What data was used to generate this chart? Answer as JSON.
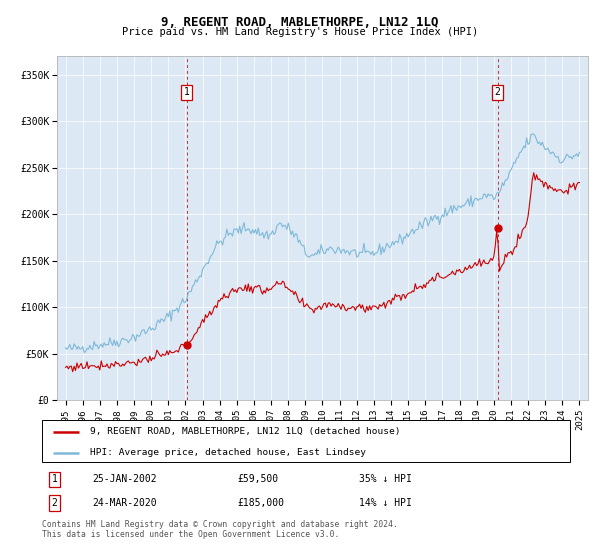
{
  "title": "9, REGENT ROAD, MABLETHORPE, LN12 1LQ",
  "subtitle": "Price paid vs. HM Land Registry's House Price Index (HPI)",
  "legend_line1": "9, REGENT ROAD, MABLETHORPE, LN12 1LQ (detached house)",
  "legend_line2": "HPI: Average price, detached house, East Lindsey",
  "annotation1_date": "25-JAN-2002",
  "annotation1_price": "£59,500",
  "annotation1_hpi": "35% ↓ HPI",
  "annotation2_date": "24-MAR-2020",
  "annotation2_price": "£185,000",
  "annotation2_hpi": "14% ↓ HPI",
  "footnote": "Contains HM Land Registry data © Crown copyright and database right 2024.\nThis data is licensed under the Open Government Licence v3.0.",
  "plot_bg_color": "#dce9f5",
  "hpi_color": "#7fb8d8",
  "price_color": "#cc0000",
  "marker1_x": 2002.07,
  "marker1_y": 59500,
  "marker2_x": 2020.23,
  "marker2_y": 185000,
  "ylim": [
    0,
    370000
  ],
  "xlim": [
    1994.5,
    2025.5
  ],
  "yticks": [
    0,
    50000,
    100000,
    150000,
    200000,
    250000,
    300000,
    350000
  ],
  "ytick_labels": [
    "£0",
    "£50K",
    "£100K",
    "£150K",
    "£200K",
    "£250K",
    "£300K",
    "£350K"
  ],
  "xticks": [
    1995,
    1996,
    1997,
    1998,
    1999,
    2000,
    2001,
    2002,
    2003,
    2004,
    2005,
    2006,
    2007,
    2008,
    2009,
    2010,
    2011,
    2012,
    2013,
    2014,
    2015,
    2016,
    2017,
    2018,
    2019,
    2020,
    2021,
    2022,
    2023,
    2024,
    2025
  ],
  "hpi_anchors": [
    [
      1995.0,
      55000
    ],
    [
      1996.0,
      57000
    ],
    [
      1997.0,
      60000
    ],
    [
      1998.0,
      63000
    ],
    [
      1999.0,
      68000
    ],
    [
      2000.0,
      77000
    ],
    [
      2001.0,
      90000
    ],
    [
      2002.0,
      108000
    ],
    [
      2003.0,
      140000
    ],
    [
      2003.6,
      160000
    ],
    [
      2004.0,
      170000
    ],
    [
      2004.5,
      178000
    ],
    [
      2005.0,
      182000
    ],
    [
      2005.5,
      185000
    ],
    [
      2006.0,
      183000
    ],
    [
      2006.5,
      178000
    ],
    [
      2007.0,
      178000
    ],
    [
      2007.5,
      190000
    ],
    [
      2008.0,
      185000
    ],
    [
      2008.5,
      175000
    ],
    [
      2009.0,
      158000
    ],
    [
      2009.5,
      155000
    ],
    [
      2010.0,
      160000
    ],
    [
      2010.5,
      163000
    ],
    [
      2011.0,
      162000
    ],
    [
      2011.5,
      160000
    ],
    [
      2012.0,
      158000
    ],
    [
      2012.5,
      157000
    ],
    [
      2013.0,
      158000
    ],
    [
      2013.5,
      163000
    ],
    [
      2014.0,
      168000
    ],
    [
      2014.5,
      172000
    ],
    [
      2015.0,
      178000
    ],
    [
      2015.5,
      185000
    ],
    [
      2016.0,
      190000
    ],
    [
      2016.5,
      196000
    ],
    [
      2017.0,
      200000
    ],
    [
      2017.5,
      205000
    ],
    [
      2018.0,
      208000
    ],
    [
      2018.5,
      212000
    ],
    [
      2019.0,
      216000
    ],
    [
      2019.5,
      220000
    ],
    [
      2020.0,
      218000
    ],
    [
      2020.3,
      222000
    ],
    [
      2020.5,
      230000
    ],
    [
      2021.0,
      245000
    ],
    [
      2021.5,
      265000
    ],
    [
      2022.0,
      278000
    ],
    [
      2022.3,
      285000
    ],
    [
      2022.5,
      280000
    ],
    [
      2023.0,
      272000
    ],
    [
      2023.5,
      265000
    ],
    [
      2024.0,
      258000
    ],
    [
      2024.5,
      262000
    ],
    [
      2025.0,
      265000
    ]
  ],
  "price_anchors": [
    [
      1995.0,
      35000
    ],
    [
      1996.0,
      37000
    ],
    [
      1997.0,
      38000
    ],
    [
      1998.0,
      39000
    ],
    [
      1999.0,
      41000
    ],
    [
      2000.0,
      45000
    ],
    [
      2001.0,
      50000
    ],
    [
      2001.5,
      53000
    ],
    [
      2002.0,
      60000
    ],
    [
      2002.5,
      70000
    ],
    [
      2003.0,
      83000
    ],
    [
      2003.5,
      96000
    ],
    [
      2004.0,
      108000
    ],
    [
      2004.5,
      115000
    ],
    [
      2005.0,
      118000
    ],
    [
      2005.5,
      122000
    ],
    [
      2006.0,
      120000
    ],
    [
      2006.5,
      118000
    ],
    [
      2007.0,
      122000
    ],
    [
      2007.5,
      125000
    ],
    [
      2008.0,
      120000
    ],
    [
      2008.5,
      110000
    ],
    [
      2009.0,
      100000
    ],
    [
      2009.5,
      98000
    ],
    [
      2010.0,
      102000
    ],
    [
      2010.5,
      104000
    ],
    [
      2011.0,
      102000
    ],
    [
      2011.5,
      100000
    ],
    [
      2012.0,
      100000
    ],
    [
      2012.5,
      99000
    ],
    [
      2013.0,
      100000
    ],
    [
      2013.5,
      103000
    ],
    [
      2014.0,
      107000
    ],
    [
      2014.5,
      111000
    ],
    [
      2015.0,
      116000
    ],
    [
      2015.5,
      122000
    ],
    [
      2016.0,
      126000
    ],
    [
      2016.5,
      130000
    ],
    [
      2017.0,
      133000
    ],
    [
      2017.5,
      137000
    ],
    [
      2018.0,
      140000
    ],
    [
      2018.5,
      143000
    ],
    [
      2019.0,
      146000
    ],
    [
      2019.5,
      148000
    ],
    [
      2020.0,
      150000
    ],
    [
      2020.2,
      185000
    ],
    [
      2020.3,
      143000
    ],
    [
      2020.5,
      148000
    ],
    [
      2021.0,
      160000
    ],
    [
      2021.5,
      175000
    ],
    [
      2022.0,
      195000
    ],
    [
      2022.3,
      245000
    ],
    [
      2022.5,
      240000
    ],
    [
      2023.0,
      232000
    ],
    [
      2023.5,
      228000
    ],
    [
      2024.0,
      225000
    ],
    [
      2024.5,
      228000
    ],
    [
      2025.0,
      230000
    ]
  ]
}
